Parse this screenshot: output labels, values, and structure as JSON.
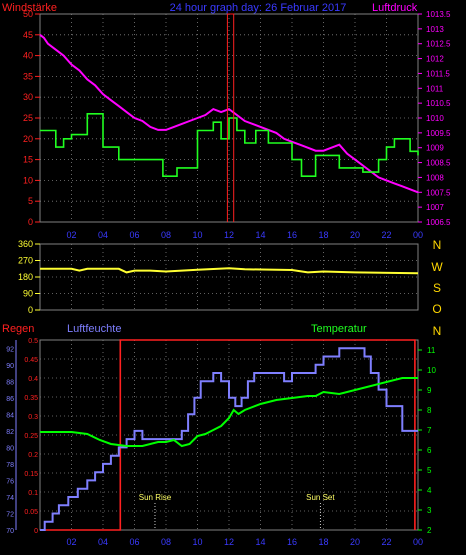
{
  "header": {
    "left_title": "Windstärke",
    "center_title": "24 hour graph day: 26 Februar 2017",
    "right_title": "Luftdruck"
  },
  "colors": {
    "background": "#000000",
    "grid": "#808080",
    "wind": "#ff2020",
    "pressure": "#ff00ff",
    "windavg": "#20ff20",
    "direction": "#ffff33",
    "rain": "#ff2020",
    "humidity": "#7f7fff",
    "temperature": "#00ff00",
    "title_blue": "#3a3aff",
    "sun_label": "#ffff66"
  },
  "chart_data": [
    {
      "type": "line",
      "title": "24 hour graph day: 26 Februar 2017",
      "x_ticks": [
        "02",
        "04",
        "06",
        "08",
        "10",
        "12",
        "14",
        "16",
        "18",
        "20",
        "22",
        "00"
      ],
      "x_domain": [
        0,
        24
      ],
      "y_left": {
        "label": "Windstärke",
        "ticks": [
          "0",
          "5",
          "10",
          "15",
          "20",
          "25",
          "30",
          "35",
          "40",
          "45",
          "50"
        ],
        "ylim": [
          0,
          50
        ]
      },
      "y_right": {
        "label": "Luftdruck",
        "ticks": [
          "1006.5",
          "1007",
          "1007.5",
          "1008",
          "1008.5",
          "1009",
          "1009.5",
          "1010",
          "1010.5",
          "1011",
          "1011.5",
          "1012",
          "1012.5",
          "1013",
          "1013.5"
        ],
        "ylim": [
          1006.5,
          1013.5
        ]
      },
      "series": [
        {
          "name": "Luftdruck",
          "axis": "right",
          "x": [
            0,
            0.25,
            0.5,
            1,
            1.5,
            2,
            2.5,
            3,
            3.5,
            4,
            4.5,
            5,
            5.5,
            6,
            6.5,
            7,
            7.5,
            8,
            8.5,
            9,
            9.5,
            10,
            10.5,
            11,
            11.5,
            12,
            12.5,
            13,
            13.5,
            14,
            14.5,
            15,
            15.5,
            16,
            16.5,
            17,
            17.5,
            18,
            18.5,
            19,
            19.5,
            20,
            20.5,
            21,
            21.5,
            22,
            22.5,
            23,
            23.5,
            24
          ],
          "values": [
            1012.8,
            1012.7,
            1012.5,
            1012.3,
            1012.1,
            1011.8,
            1011.6,
            1011.3,
            1011.1,
            1010.8,
            1010.6,
            1010.4,
            1010.2,
            1010.0,
            1009.9,
            1009.7,
            1009.6,
            1009.6,
            1009.7,
            1009.8,
            1009.9,
            1010.0,
            1010.1,
            1010.3,
            1010.2,
            1010.3,
            1010.1,
            1009.9,
            1009.8,
            1009.7,
            1009.6,
            1009.5,
            1009.3,
            1009.2,
            1009.1,
            1009.0,
            1008.9,
            1008.9,
            1009.0,
            1009.1,
            1008.8,
            1008.6,
            1008.4,
            1008.2,
            1008.0,
            1007.9,
            1007.8,
            1007.7,
            1007.6,
            1007.5
          ]
        },
        {
          "name": "Windstärke",
          "axis": "left",
          "x": [
            0,
            1,
            1.5,
            2,
            3,
            4,
            5,
            6,
            7,
            7.8,
            8.7,
            10,
            11,
            11.5,
            12,
            12.5,
            13,
            13.7,
            14.5,
            15.3,
            16,
            16.6,
            17.5,
            18.3,
            19,
            19.5,
            20.5,
            21.5,
            22,
            22.5,
            23.5,
            24
          ],
          "values": [
            22,
            18,
            20,
            21,
            26,
            18,
            15,
            15,
            15,
            11,
            13,
            22,
            24,
            20,
            25,
            22,
            19,
            22,
            19,
            19,
            15,
            11,
            16,
            16,
            13,
            13,
            12,
            15,
            18,
            20,
            17,
            16
          ],
          "step": true
        },
        {
          "name": "Windspitze",
          "axis": "left",
          "x": [
            11.9,
            11.9,
            12.3,
            12.3
          ],
          "values": [
            0,
            50,
            50,
            0
          ]
        }
      ]
    },
    {
      "type": "line",
      "title": "",
      "x_domain": [
        0,
        24
      ],
      "y_left": {
        "label": "",
        "ticks": [
          "0",
          "90",
          "180",
          "270",
          "360"
        ],
        "ylim": [
          0,
          360
        ]
      },
      "right_labels": [
        "N",
        "W",
        "S",
        "O",
        "N"
      ],
      "series": [
        {
          "name": "Windrichtung",
          "x": [
            0,
            2,
            2.5,
            3,
            5,
            5.5,
            6,
            7,
            8,
            9,
            10,
            12,
            13,
            16,
            17,
            18,
            20,
            24
          ],
          "values": [
            225,
            225,
            215,
            225,
            225,
            205,
            215,
            215,
            210,
            215,
            220,
            228,
            222,
            218,
            205,
            210,
            205,
            200
          ]
        }
      ]
    },
    {
      "type": "line",
      "title": "",
      "x_ticks": [
        "02",
        "04",
        "06",
        "08",
        "10",
        "12",
        "14",
        "16",
        "18",
        "20",
        "22",
        "00"
      ],
      "x_domain": [
        0,
        24
      ],
      "y_left_outer": {
        "label": "Luftfeuchte",
        "ticks": [
          "70",
          "72",
          "74",
          "76",
          "78",
          "80",
          "82",
          "84",
          "86",
          "88",
          "90",
          "92"
        ],
        "ylim": [
          70,
          93
        ]
      },
      "y_left_inner": {
        "label": "Regen",
        "ticks": [
          "0",
          "0.05",
          "0.1",
          "0.15",
          "0.2",
          "0.25",
          "0.3",
          "0.35",
          "0.4",
          "0.45",
          "0.5"
        ],
        "ylim": [
          0,
          0.5
        ]
      },
      "y_right": {
        "label": "Temperatur",
        "ticks": [
          "2",
          "3",
          "4",
          "5",
          "6",
          "7",
          "8",
          "9",
          "10",
          "11"
        ],
        "ylim": [
          2,
          11.5
        ]
      },
      "annotations": [
        {
          "label": "Sun Rise",
          "x": 7.3
        },
        {
          "label": "Sun Set",
          "x": 17.8
        }
      ],
      "series": [
        {
          "name": "Regen",
          "axis": "inner",
          "x": [
            0,
            5.1,
            5.1,
            23.8,
            23.8
          ],
          "values": [
            0,
            0,
            0.5,
            0.5,
            0
          ]
        },
        {
          "name": "Luftfeuchte",
          "axis": "outer",
          "step": true,
          "x": [
            0,
            0.3,
            0.8,
            1.2,
            1.8,
            2.4,
            3.0,
            3.5,
            4.0,
            4.5,
            5.0,
            5.5,
            6.0,
            6.5,
            7.0,
            8.0,
            9.0,
            9.4,
            9.8,
            10.2,
            11.0,
            11.5,
            12.0,
            12.4,
            12.8,
            13.2,
            13.6,
            15.5,
            16.0,
            17.0,
            17.5,
            18.0,
            18.5,
            19.0,
            20.0,
            20.6,
            21.0,
            21.5,
            22.0,
            23.0,
            24
          ],
          "values": [
            70,
            71,
            72,
            73,
            74,
            75,
            76,
            77,
            78,
            79,
            80,
            81,
            82,
            81,
            81,
            81,
            82,
            84,
            86,
            88,
            89,
            88,
            86,
            85,
            86,
            88,
            89,
            88,
            89,
            89,
            90,
            91,
            91,
            92,
            92,
            91,
            89,
            87,
            85,
            82,
            82
          ]
        },
        {
          "name": "Temperatur",
          "axis": "right",
          "x": [
            0,
            1,
            2,
            3,
            3.8,
            4.5,
            5.5,
            6.5,
            7.5,
            8,
            8.5,
            9,
            9.5,
            10,
            10.5,
            11,
            11.5,
            12,
            12.3,
            12.6,
            13,
            14,
            15,
            16,
            17,
            17.5,
            18,
            19,
            20,
            21,
            22,
            23,
            24
          ],
          "values": [
            6.9,
            6.9,
            6.9,
            6.8,
            6.5,
            6.3,
            6.2,
            6.2,
            6.4,
            6.4,
            6.5,
            6.2,
            6.3,
            6.7,
            6.8,
            7.0,
            7.2,
            7.6,
            8.0,
            7.8,
            8.0,
            8.3,
            8.5,
            8.6,
            8.7,
            8.7,
            8.9,
            8.8,
            9.0,
            9.2,
            9.4,
            9.6,
            9.6
          ]
        }
      ]
    }
  ],
  "panel3": {
    "left_title": "Regen",
    "center_title": "Luftfeuchte",
    "right_title": "Temperatur",
    "sunrise": "Sun Rise",
    "sunset": "Sun Set"
  }
}
